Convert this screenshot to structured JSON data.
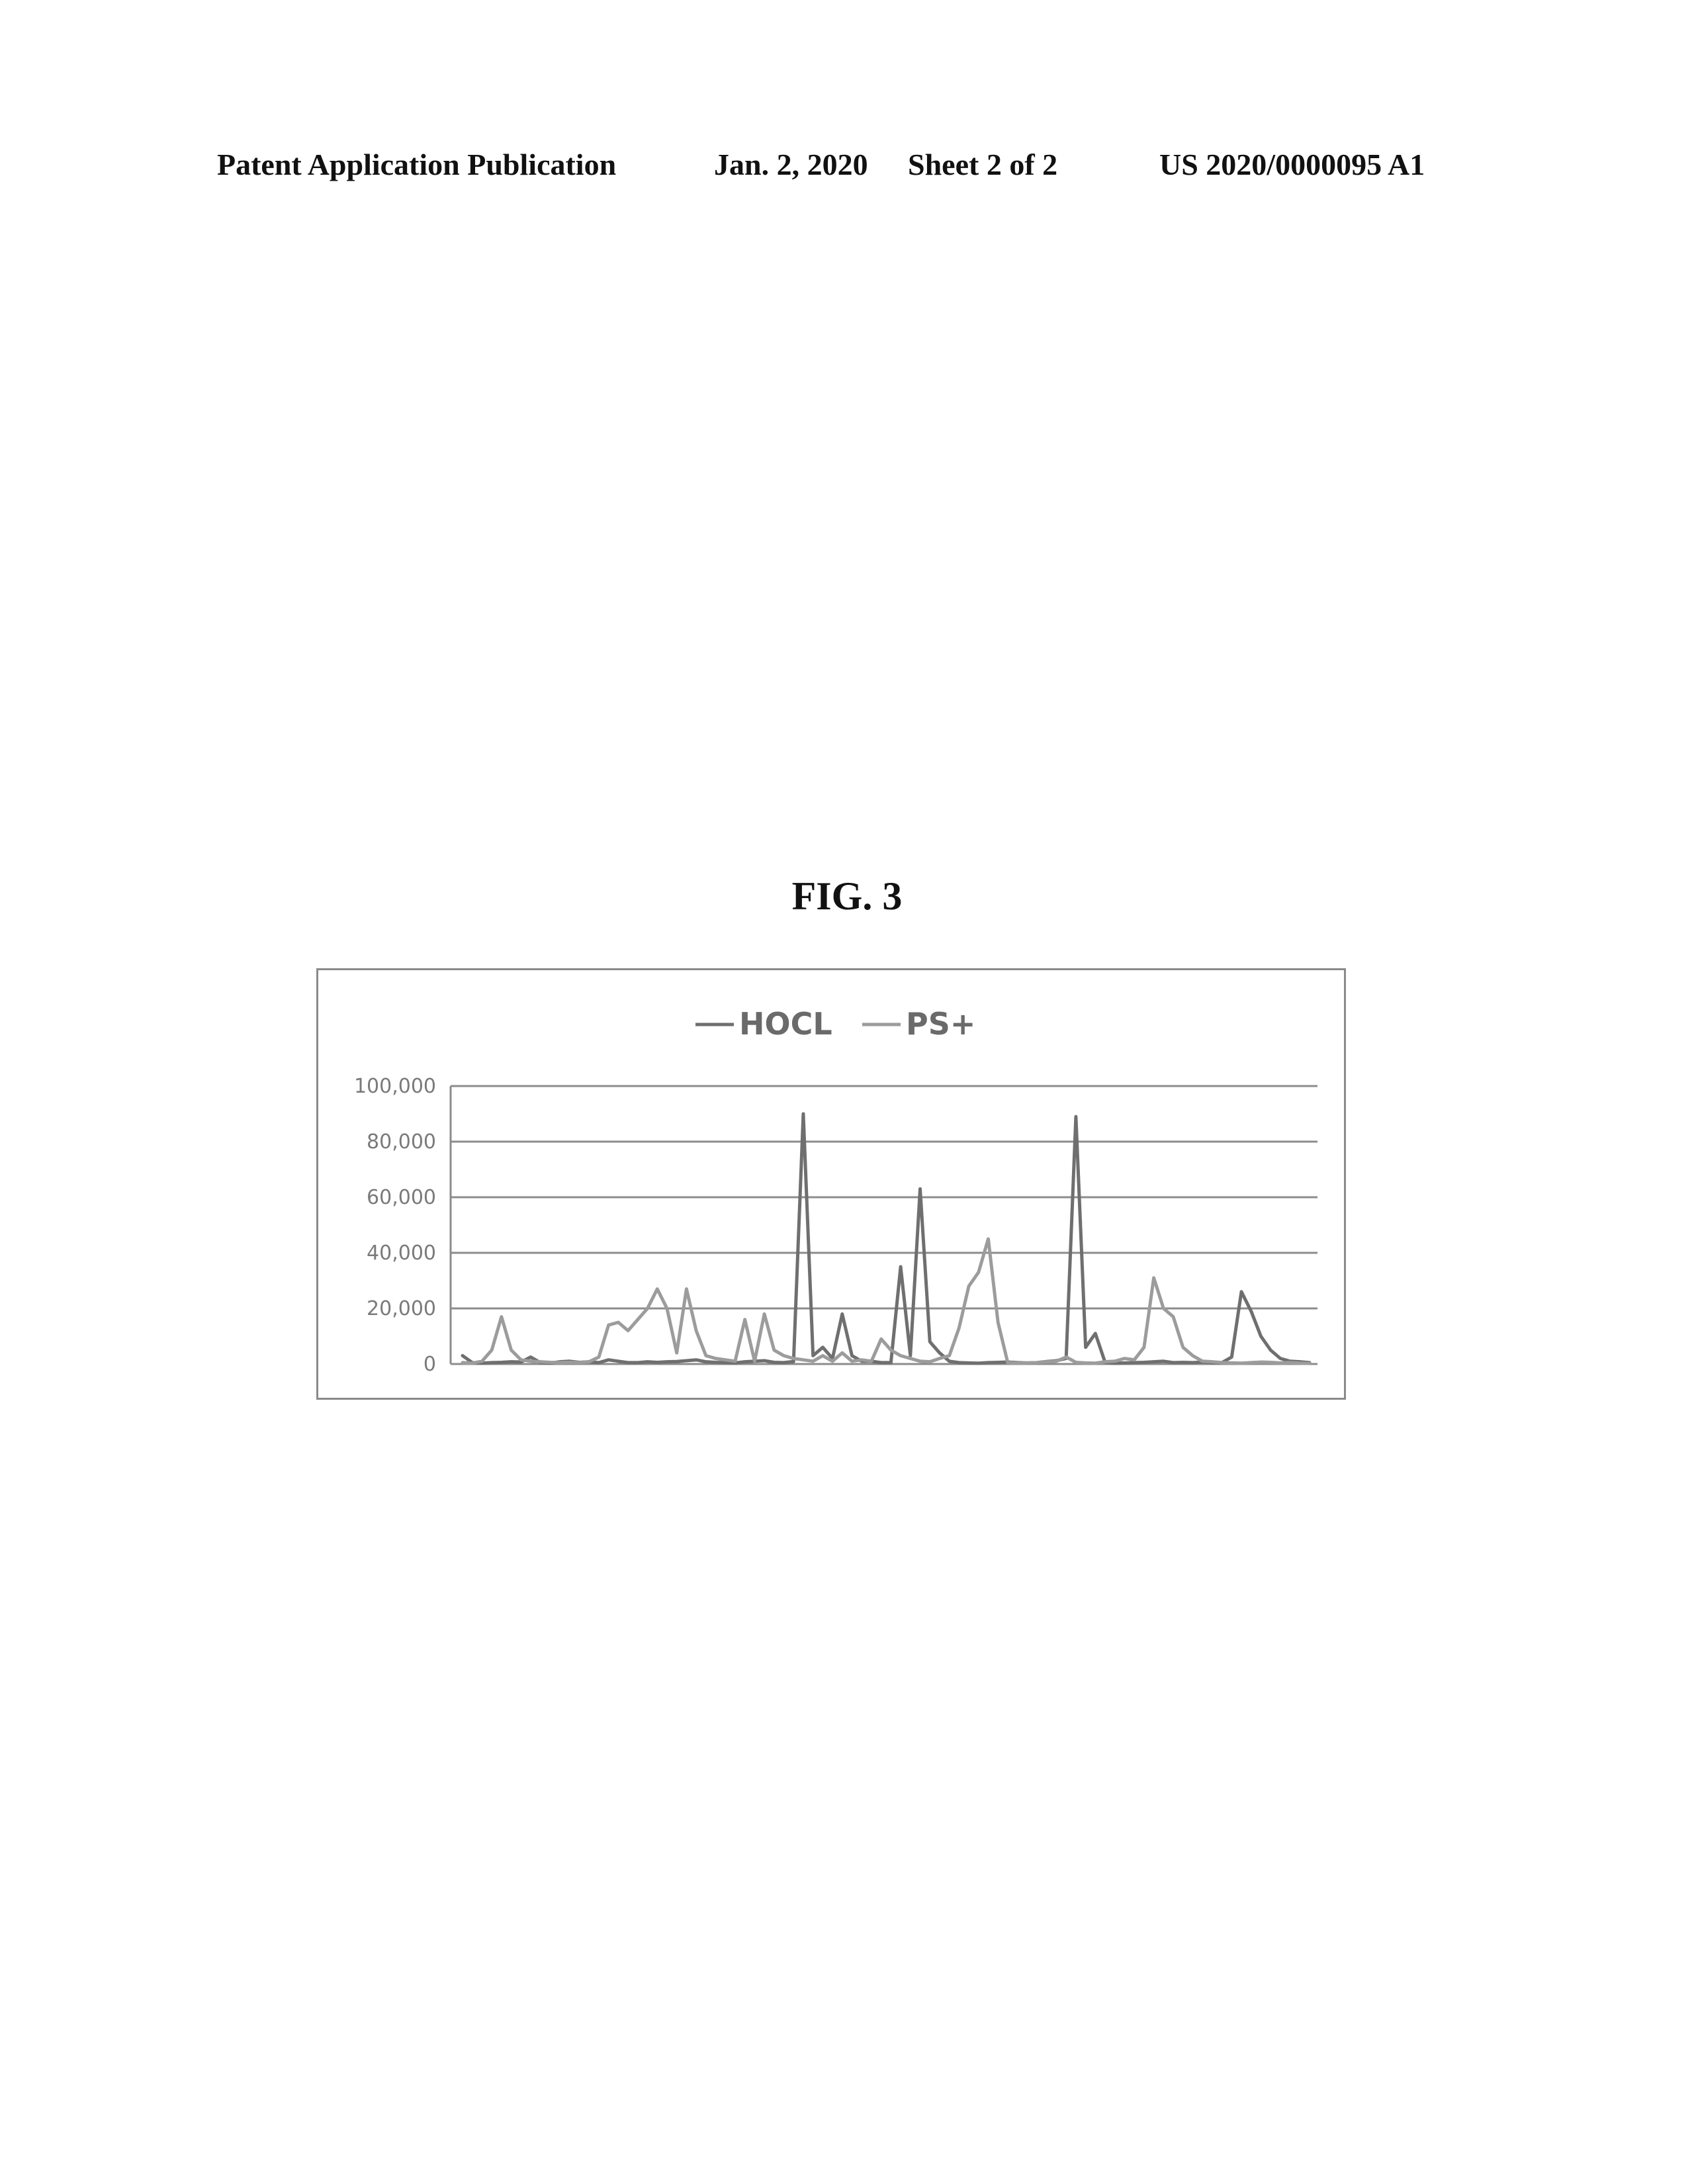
{
  "header": {
    "left": "Patent Application Publication",
    "date": "Jan. 2, 2020",
    "sheet": "Sheet 2 of 2",
    "number": "US 2020/0000095 A1"
  },
  "figure": {
    "label": "FIG. 3"
  },
  "chart_data": {
    "type": "line",
    "title": "",
    "xlabel": "",
    "ylabel": "",
    "ylim": [
      0,
      100000
    ],
    "yticks": [
      0,
      20000,
      40000,
      60000,
      80000,
      100000
    ],
    "ytick_labels": [
      "0",
      "20,000",
      "40,000",
      "60,000",
      "80,000",
      "100,000"
    ],
    "grid": true,
    "legend": "top-center",
    "colors": {
      "HOCL": "#6f6f6f",
      "PS+": "#9c9c9c"
    },
    "x": [
      1,
      2,
      3,
      4,
      5,
      6,
      7,
      8,
      9,
      10,
      11,
      12,
      13,
      14,
      15,
      16,
      17,
      18,
      19,
      20,
      21,
      22,
      23,
      24,
      25,
      26,
      27,
      28,
      29,
      30,
      31,
      32,
      33,
      34,
      35,
      36,
      37,
      38,
      39,
      40,
      41,
      42,
      43,
      44,
      45,
      46,
      47,
      48,
      49,
      50,
      51,
      52,
      53,
      54,
      55,
      56,
      57,
      58,
      59,
      60,
      61,
      62,
      63,
      64,
      65,
      66,
      67,
      68,
      69,
      70,
      71,
      72,
      73,
      74,
      75,
      76,
      77,
      78,
      79,
      80,
      81,
      82,
      83,
      84,
      85,
      86,
      87,
      88
    ],
    "series": [
      {
        "name": "HOCL",
        "values": [
          3000,
          500,
          300,
          500,
          600,
          800,
          700,
          2500,
          500,
          300,
          800,
          1000,
          600,
          800,
          500,
          1500,
          1000,
          500,
          500,
          800,
          600,
          800,
          900,
          1200,
          1500,
          800,
          600,
          500,
          400,
          800,
          1000,
          1200,
          600,
          500,
          900,
          90000,
          3000,
          6000,
          2000,
          18000,
          3000,
          1000,
          1000,
          500,
          500,
          35000,
          3000,
          63000,
          8000,
          4000,
          1000,
          500,
          400,
          300,
          500,
          600,
          700,
          500,
          400,
          500,
          900,
          1200,
          2000,
          89000,
          6000,
          11000,
          600,
          300,
          400,
          500,
          600,
          800,
          1000,
          500,
          600,
          500,
          700,
          500,
          500,
          2500,
          26000,
          19000,
          10000,
          5000,
          2000,
          1000,
          800,
          500
        ]
      },
      {
        "name": "PS+",
        "values": [
          500,
          300,
          1000,
          5000,
          17000,
          5000,
          1500,
          1000,
          800,
          600,
          500,
          600,
          500,
          800,
          2500,
          14000,
          15000,
          12000,
          16000,
          20000,
          27000,
          20000,
          4000,
          27000,
          12000,
          3000,
          2000,
          1500,
          1000,
          16000,
          1000,
          18000,
          5000,
          3000,
          2000,
          1500,
          1000,
          3000,
          1000,
          4000,
          1000,
          1500,
          1000,
          9000,
          5000,
          3000,
          2000,
          1000,
          800,
          2000,
          3000,
          13000,
          28000,
          33000,
          45000,
          15000,
          500,
          300,
          400,
          500,
          800,
          1000,
          2500,
          600,
          400,
          300,
          800,
          1000,
          2000,
          1500,
          6000,
          31000,
          20000,
          17000,
          6000,
          3000,
          1000,
          800,
          500,
          400,
          300,
          500,
          700,
          600,
          400,
          500,
          300,
          200
        ]
      }
    ]
  }
}
